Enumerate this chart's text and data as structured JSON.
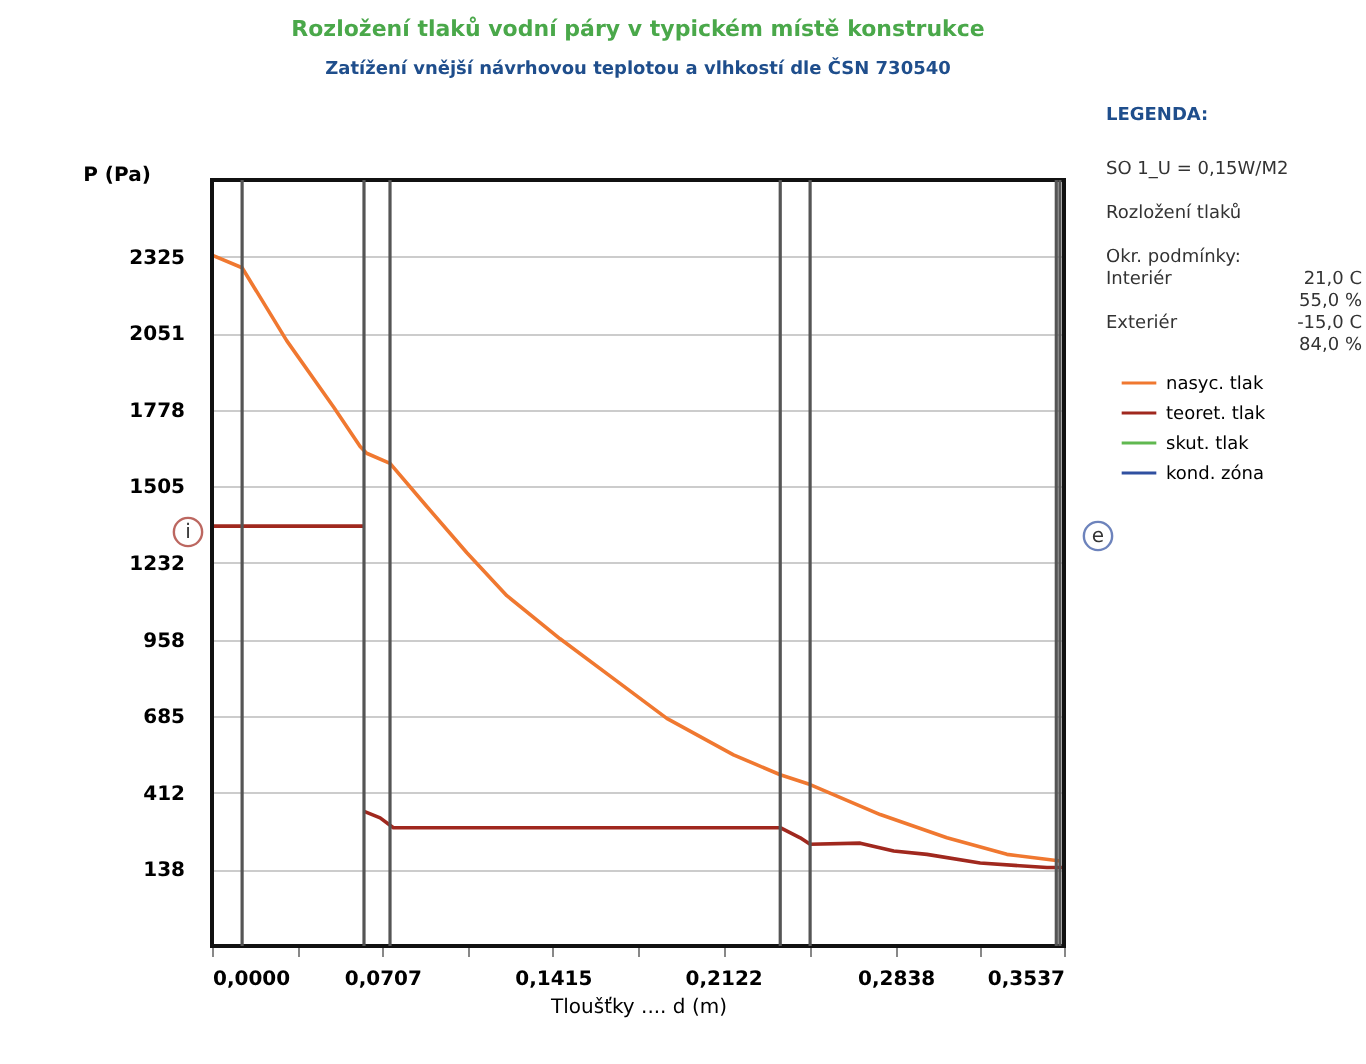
{
  "chart_data": {
    "type": "line",
    "title": "Rozložení tlaků vodní páry v typickém místě konstrukce",
    "subtitle": "Zatížení vnější návrhovou teplotou a vlhkostí dle ČSN 730540",
    "xlabel": "Tloušťky .... d (m)",
    "ylabel": "P (Pa)",
    "legend_title": "LEGENDA:",
    "annotations": [
      "SO  1_U = 0,15W/M2",
      "Rozložení tlaků",
      "Okr. podmínky:",
      "Interiér",
      "21,0 C",
      "55,0 %",
      "Exteriér",
      "-15,0 C",
      "84,0 %",
      "i",
      "e"
    ],
    "xlim": [
      0,
      0.3537
    ],
    "ylim": [
      -135,
      2598
    ],
    "xticks": [
      {
        "value": 0,
        "label": "0,0000"
      },
      {
        "value": 0.0354,
        "label": null
      },
      {
        "value": 0.0707,
        "label": "0,0707"
      },
      {
        "value": 0.1061,
        "label": null
      },
      {
        "value": 0.1415,
        "label": "0,1415"
      },
      {
        "value": 0.1768,
        "label": null
      },
      {
        "value": 0.2122,
        "label": "0,2122"
      },
      {
        "value": 0.248,
        "label": null
      },
      {
        "value": 0.2838,
        "label": "0,2838"
      },
      {
        "value": 0.3187,
        "label": null
      },
      {
        "value": 0.3537,
        "label": "0,3537"
      }
    ],
    "yticks": [
      138,
      412,
      685,
      958,
      1232,
      1505,
      1778,
      2051,
      2325
    ],
    "grid": "y",
    "legend": "right",
    "line_style": "solid",
    "marker": "none",
    "ref_lines": [
      {
        "axis": "x",
        "value": 0.0125,
        "color": "#555555"
      },
      {
        "axis": "x",
        "value": 0.0631,
        "color": "#555555"
      },
      {
        "axis": "x",
        "value": 0.0739,
        "color": "#555555"
      },
      {
        "axis": "x",
        "value": 0.2359,
        "color": "#555555"
      },
      {
        "axis": "x",
        "value": 0.2483,
        "color": "#555555"
      },
      {
        "axis": "x",
        "value": 0.3505,
        "color": "#555555"
      },
      {
        "axis": "x",
        "value": 0.352,
        "color": "#555555"
      }
    ],
    "series": [
      {
        "name": "nasyc. tlak",
        "color": "#f07830",
        "x": [
          0,
          0.0125,
          0.031,
          0.0504,
          0.0615,
          0.0642,
          0.0739,
          0.0891,
          0.1058,
          0.1224,
          0.1445,
          0.1667,
          0.1888,
          0.2165,
          0.2359,
          0.2483,
          0.2774,
          0.3051,
          0.33,
          0.3522
        ],
        "values": [
          2330,
          2285,
          2025,
          1789,
          1647,
          1623,
          1587,
          1434,
          1268,
          1115,
          961,
          819,
          677,
          547,
          476,
          441,
          334,
          251,
          192,
          168
        ]
      },
      {
        "name": "teoret. tlak",
        "color": "#a0281e",
        "x": [
          0,
          0.0631,
          null,
          0.0629,
          0.0698,
          0.0753,
          0.2359,
          0.2442,
          0.2483,
          0.2691,
          0.283,
          0.2968,
          0.3189,
          0.3466,
          0.3537
        ],
        "values": [
          1363,
          1363,
          null,
          346,
          322,
          287,
          287,
          251,
          228,
          232,
          204,
          192,
          161,
          145,
          145
        ]
      },
      {
        "name": "skut. tlak",
        "color": "#60b850"
      },
      {
        "name": "kond. zóna",
        "color": "#3050a0"
      }
    ]
  }
}
